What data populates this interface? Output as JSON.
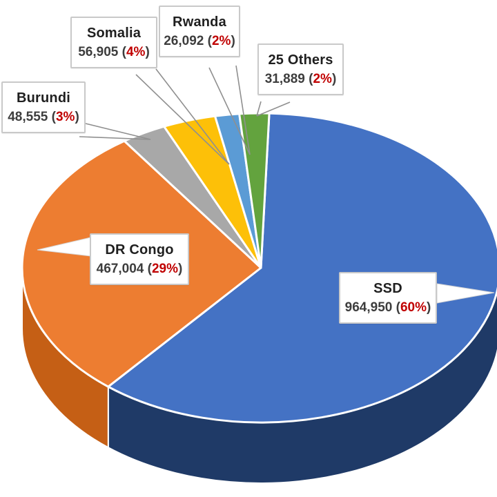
{
  "chart_data": {
    "type": "pie",
    "style": "3d-exploded-none",
    "title": "",
    "legend_position": "none",
    "background_color": "#ffffff",
    "percent_text_color": "#c00000",
    "direction": "clockwise",
    "start_position": "top",
    "order_clockwise_from_top": [
      "SSD",
      "DR Congo",
      "Burundi",
      "Somalia",
      "Rwanda",
      "25 Others"
    ],
    "slices": [
      {
        "label": "SSD",
        "value": 964950,
        "value_display": "964,950",
        "pct_display": "60%",
        "color": "#4472c4",
        "side_color": "#1f3a67"
      },
      {
        "label": "DR Congo",
        "value": 467004,
        "value_display": "467,004",
        "pct_display": "29%",
        "color": "#ed7d31",
        "side_color": "#c55f15"
      },
      {
        "label": "Burundi",
        "value": 48555,
        "value_display": "48,555",
        "pct_display": "3%",
        "color": "#a8a8a8",
        "side_color": "#7f7f7f"
      },
      {
        "label": "Somalia",
        "value": 56905,
        "value_display": "56,905",
        "pct_display": "4%",
        "color": "#fdc008",
        "side_color": "#bf9000"
      },
      {
        "label": "Rwanda",
        "value": 26092,
        "value_display": "26,092",
        "pct_display": "2%",
        "color": "#5b9bd5",
        "side_color": "#2e75b6"
      },
      {
        "label": "25 Others",
        "value": 31889,
        "value_display": "31,889",
        "pct_display": "2%",
        "color": "#63a33e",
        "side_color": "#4b7d2f"
      }
    ]
  }
}
